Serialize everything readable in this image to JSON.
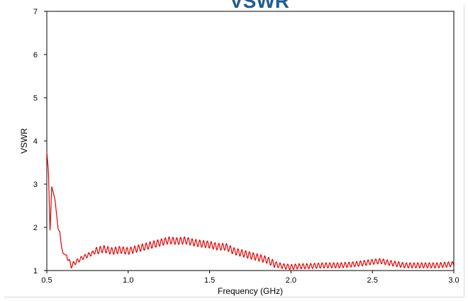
{
  "chart_data": {
    "type": "line",
    "title": "VSWR",
    "xlabel": "Frequency (GHz)",
    "ylabel": "VSWR",
    "xlim": [
      0.5,
      3.0
    ],
    "ylim": [
      1,
      7
    ],
    "xticks": [
      "0.5",
      "1.0",
      "1.5",
      "2.0",
      "2.5",
      "3.0"
    ],
    "yticks": [
      "1",
      "2",
      "3",
      "4",
      "5",
      "6",
      "7"
    ],
    "grid": false,
    "line_color": "#e00000",
    "title_color": "#1f5c8f",
    "series": [
      {
        "x": [
          0.5,
          0.51,
          0.52,
          0.53,
          0.54,
          0.55,
          0.56,
          0.57,
          0.58,
          0.59,
          0.6,
          0.62,
          0.64,
          0.65,
          0.66,
          0.68,
          0.7,
          0.72,
          0.75,
          0.78,
          0.8,
          0.85,
          0.9,
          0.95,
          1.0,
          1.05,
          1.1,
          1.15,
          1.2,
          1.25,
          1.3,
          1.35,
          1.4,
          1.45,
          1.5,
          1.55,
          1.6,
          1.65,
          1.7,
          1.75,
          1.8,
          1.85,
          1.9,
          1.95,
          2.0,
          2.05,
          2.1,
          2.2,
          2.3,
          2.4,
          2.5,
          2.55,
          2.6,
          2.65,
          2.7,
          2.8,
          2.9,
          3.0
        ],
        "y": [
          3.75,
          3.3,
          1.88,
          2.95,
          2.8,
          2.65,
          2.3,
          1.95,
          1.9,
          1.55,
          1.4,
          1.35,
          1.2,
          1.1,
          1.15,
          1.2,
          1.25,
          1.3,
          1.35,
          1.4,
          1.45,
          1.5,
          1.45,
          1.48,
          1.45,
          1.5,
          1.55,
          1.6,
          1.65,
          1.7,
          1.68,
          1.7,
          1.65,
          1.62,
          1.6,
          1.55,
          1.55,
          1.45,
          1.4,
          1.35,
          1.3,
          1.25,
          1.15,
          1.1,
          1.08,
          1.1,
          1.1,
          1.12,
          1.12,
          1.15,
          1.2,
          1.22,
          1.18,
          1.15,
          1.12,
          1.12,
          1.12,
          1.15
        ]
      }
    ]
  }
}
